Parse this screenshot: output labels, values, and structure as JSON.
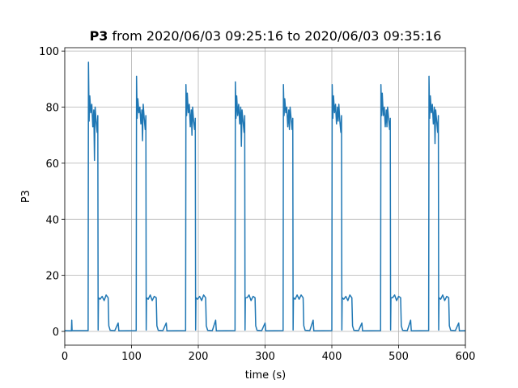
{
  "chart_data": {
    "type": "line",
    "title_bold": "P3",
    "title": "from 2020/06/03 09:25:16 to 2020/06/03 09:35:16",
    "xlabel": "time (s)",
    "ylabel": "P3",
    "color": "#1f77b4",
    "grid": true,
    "xlim": [
      0,
      600
    ],
    "ylim": [
      -4.9,
      101.2
    ],
    "xticks": [
      0,
      100,
      200,
      300,
      400,
      500,
      600
    ],
    "yticks": [
      0,
      20,
      40,
      60,
      80,
      100
    ],
    "x": [
      0,
      10,
      10.5,
      11,
      35,
      35.5,
      36.5,
      37.5,
      39,
      40.5,
      42,
      43.5,
      44.5,
      45.5,
      47,
      48.5,
      49.5,
      50,
      50.5,
      53,
      56,
      59,
      62,
      65,
      66,
      68,
      75,
      80,
      81,
      107,
      107.5,
      108.5,
      109.5,
      111,
      112.5,
      114,
      115.5,
      116.5,
      117.5,
      119,
      120.5,
      121.5,
      122,
      122.5,
      125,
      128,
      131,
      134,
      137,
      138,
      140,
      147,
      152,
      153,
      181,
      181.5,
      182.5,
      183.5,
      185,
      186.5,
      188,
      189.5,
      190.5,
      191.5,
      193,
      194.5,
      195.5,
      196,
      196.5,
      199,
      202,
      205,
      208,
      211,
      212,
      214,
      221,
      226,
      227,
      255,
      255.5,
      256.5,
      257.5,
      259,
      260.5,
      262,
      263.5,
      264.5,
      265.5,
      267,
      268.5,
      269.5,
      270,
      270.5,
      273,
      276,
      279,
      282,
      285,
      286,
      288,
      295,
      300,
      301,
      327,
      327.5,
      328.5,
      329.5,
      331,
      332.5,
      334,
      335.5,
      336.5,
      337.5,
      339,
      340.5,
      341.5,
      342,
      342.5,
      345,
      348,
      351,
      354,
      357,
      358,
      360,
      367,
      372,
      373,
      400,
      400.5,
      401.5,
      402.5,
      404,
      405.5,
      407,
      408.5,
      409.5,
      410.5,
      412,
      413.5,
      414.5,
      415,
      415.5,
      418,
      421,
      424,
      427,
      430,
      431,
      433,
      440,
      445,
      446,
      473,
      473.5,
      474.5,
      475.5,
      477,
      478.5,
      480,
      481.5,
      482.5,
      483.5,
      485,
      486.5,
      487.5,
      488,
      488.5,
      491,
      494,
      497,
      500,
      503,
      504,
      506,
      513,
      518,
      519,
      545,
      545.5,
      546.5,
      547.5,
      549,
      550.5,
      552,
      553.5,
      554.5,
      555.5,
      557,
      558.5,
      559.5,
      560,
      560.5,
      563,
      566,
      569,
      572,
      575,
      576,
      578,
      585,
      590,
      591,
      600
    ],
    "values": [
      0.3,
      0.2,
      4,
      0.3,
      0.3,
      96,
      75,
      84,
      78,
      81,
      73,
      79,
      61,
      80,
      75,
      71,
      77,
      0.5,
      12,
      11.5,
      12.5,
      11,
      13,
      12,
      2,
      0.4,
      0.3,
      3,
      0.2,
      0.3,
      91,
      76,
      83,
      78,
      80,
      74,
      79,
      68,
      81,
      76,
      72,
      77,
      0.5,
      12,
      11.5,
      13,
      11,
      12.5,
      12,
      2,
      0.4,
      0.3,
      3,
      0.2,
      0.3,
      88,
      77,
      85,
      78,
      81,
      73,
      79,
      70,
      80,
      75,
      72,
      76,
      0.5,
      12,
      11.5,
      12.5,
      11,
      13,
      12,
      2,
      0.4,
      0.3,
      4,
      0.2,
      0.3,
      89,
      76,
      84,
      77,
      81,
      74,
      80,
      66,
      79,
      75,
      71,
      77,
      0.5,
      12,
      12,
      13,
      11,
      12.5,
      12,
      2,
      0.4,
      0.3,
      3,
      0.2,
      0.3,
      88,
      77,
      83,
      78,
      80,
      73,
      79,
      72,
      80,
      76,
      72,
      76,
      0.5,
      12,
      11.5,
      13,
      11.5,
      13,
      12,
      2,
      0.4,
      0.3,
      4,
      0.2,
      0.3,
      88,
      76,
      84,
      78,
      81,
      74,
      80,
      75,
      81,
      75,
      71,
      77,
      0.5,
      12,
      11.5,
      12.5,
      11,
      13,
      12,
      2,
      0.4,
      0.3,
      3,
      0.2,
      0.3,
      88,
      77,
      85,
      77,
      80,
      73,
      79,
      73,
      80,
      76,
      72,
      76,
      0.5,
      12,
      12,
      13,
      11,
      12.5,
      12,
      2,
      0.4,
      0.3,
      4,
      0.2,
      0.3,
      91,
      76,
      84,
      78,
      81,
      74,
      80,
      67,
      79,
      75,
      71,
      77,
      0.5,
      12,
      11.5,
      13,
      11,
      12.5,
      12,
      2,
      0.4,
      0.3,
      3,
      0.2,
      0.3
    ]
  }
}
